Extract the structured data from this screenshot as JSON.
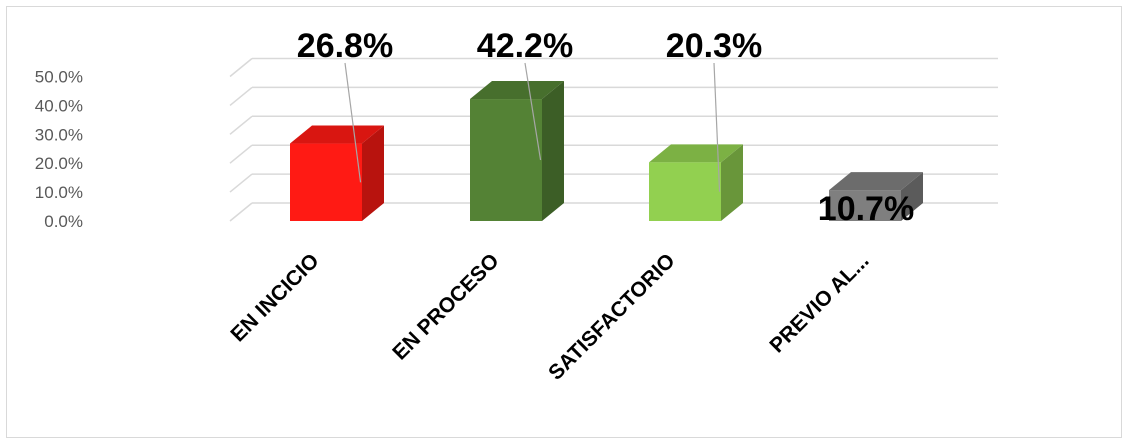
{
  "chart_data": {
    "type": "bar",
    "categories": [
      "EN INCICIO",
      "EN PROCESO",
      "SATISFACTORIO",
      "PREVIO AL..."
    ],
    "values": [
      26.8,
      42.2,
      20.3,
      10.7
    ],
    "data_labels": [
      "26.8%",
      "42.2%",
      "20.3%",
      "10.7%"
    ],
    "y_ticks": [
      "0.0%",
      "10.0%",
      "20.0%",
      "30.0%",
      "40.0%",
      "50.0%"
    ],
    "ylim": [
      0,
      50
    ],
    "grid": true,
    "legend": "none",
    "three_d": true,
    "colors": [
      "#ff1a14",
      "#548235",
      "#92d050",
      "#7f7f7f"
    ]
  }
}
